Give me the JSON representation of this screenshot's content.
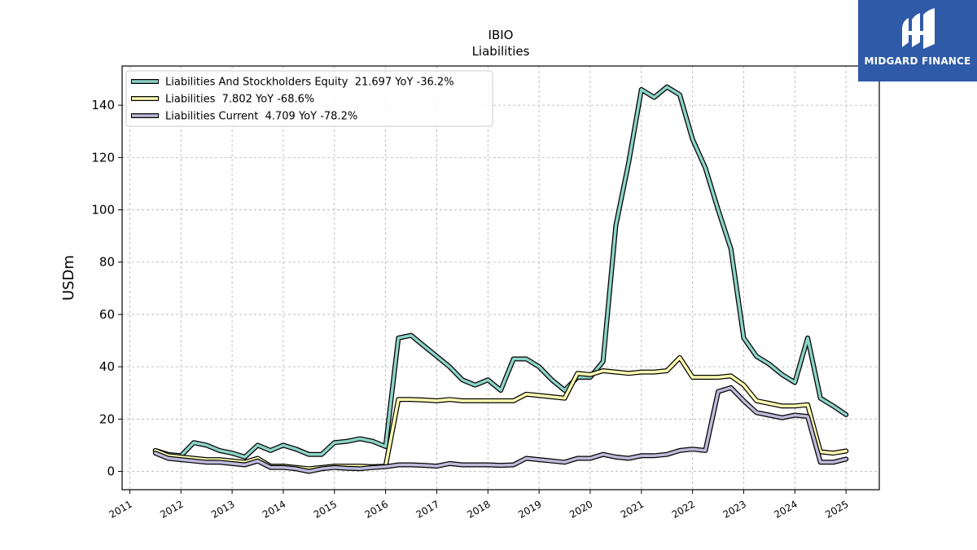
{
  "header": {
    "ticker": "IBIO",
    "subtitle": "Liabilities"
  },
  "logo": {
    "text": "MIDGARD FINANCE",
    "background": "#2f5aa8"
  },
  "chart_data": {
    "type": "line",
    "title": "IBIO",
    "subtitle": "Liabilities",
    "xlabel": "",
    "ylabel": "USDm",
    "xlim": [
      2010.85,
      2025.65
    ],
    "ylim": [
      -7,
      155
    ],
    "xticks": [
      2011,
      2012,
      2013,
      2014,
      2015,
      2016,
      2017,
      2018,
      2019,
      2020,
      2021,
      2022,
      2023,
      2024,
      2025
    ],
    "yticks": [
      0,
      20,
      40,
      60,
      80,
      100,
      120,
      140
    ],
    "grid": true,
    "legend_position": "top-left",
    "series": [
      {
        "name": "Liabilities And Stockholders Equity  21.697 YoY -36.2%",
        "color": "#8dd3c7",
        "points": [
          [
            2011.5,
            8.0
          ],
          [
            2011.75,
            6.5
          ],
          [
            2012.0,
            6.0
          ],
          [
            2012.25,
            11.0
          ],
          [
            2012.5,
            10.0
          ],
          [
            2012.75,
            8.0
          ],
          [
            2013.0,
            7.0
          ],
          [
            2013.25,
            5.5
          ],
          [
            2013.5,
            10.0
          ],
          [
            2013.75,
            8.0
          ],
          [
            2014.0,
            10.0
          ],
          [
            2014.25,
            8.5
          ],
          [
            2014.5,
            6.5
          ],
          [
            2014.75,
            6.5
          ],
          [
            2015.0,
            11.0
          ],
          [
            2015.25,
            11.5
          ],
          [
            2015.5,
            12.5
          ],
          [
            2015.75,
            11.5
          ],
          [
            2016.0,
            9.5
          ],
          [
            2016.25,
            51.0
          ],
          [
            2016.5,
            52.0
          ],
          [
            2016.75,
            48.0
          ],
          [
            2017.0,
            44.0
          ],
          [
            2017.25,
            40.0
          ],
          [
            2017.5,
            35.0
          ],
          [
            2017.75,
            33.0
          ],
          [
            2018.0,
            35.0
          ],
          [
            2018.25,
            31.0
          ],
          [
            2018.5,
            43.0
          ],
          [
            2018.75,
            43.0
          ],
          [
            2019.0,
            40.0
          ],
          [
            2019.25,
            35.0
          ],
          [
            2019.5,
            31.0
          ],
          [
            2019.75,
            36.0
          ],
          [
            2020.0,
            36.0
          ],
          [
            2020.25,
            42.0
          ],
          [
            2020.5,
            94.0
          ],
          [
            2020.75,
            118.0
          ],
          [
            2021.0,
            146.0
          ],
          [
            2021.25,
            143.0
          ],
          [
            2021.5,
            147.0
          ],
          [
            2021.75,
            144.0
          ],
          [
            2022.0,
            127.0
          ],
          [
            2022.25,
            116.0
          ],
          [
            2022.5,
            100.0
          ],
          [
            2022.75,
            85.0
          ],
          [
            2023.0,
            51.0
          ],
          [
            2023.25,
            44.0
          ],
          [
            2023.5,
            41.0
          ],
          [
            2023.75,
            37.0
          ],
          [
            2024.0,
            34.0
          ],
          [
            2024.25,
            51.0
          ],
          [
            2024.5,
            28.0
          ],
          [
            2024.75,
            25.0
          ],
          [
            2025.0,
            21.7
          ]
        ]
      },
      {
        "name": "Liabilities  7.802 YoY -68.6%",
        "color": "#ffffb3",
        "points": [
          [
            2011.5,
            8.0
          ],
          [
            2011.75,
            6.0
          ],
          [
            2012.0,
            5.5
          ],
          [
            2012.25,
            5.0
          ],
          [
            2012.5,
            4.5
          ],
          [
            2012.75,
            4.5
          ],
          [
            2013.0,
            4.0
          ],
          [
            2013.25,
            3.5
          ],
          [
            2013.5,
            5.0
          ],
          [
            2013.75,
            2.0
          ],
          [
            2014.0,
            2.0
          ],
          [
            2014.25,
            1.5
          ],
          [
            2014.5,
            1.0
          ],
          [
            2014.75,
            1.5
          ],
          [
            2015.0,
            2.0
          ],
          [
            2015.25,
            2.0
          ],
          [
            2015.5,
            2.0
          ],
          [
            2015.75,
            1.8
          ],
          [
            2016.0,
            2.0
          ],
          [
            2016.25,
            27.5
          ],
          [
            2016.5,
            27.5
          ],
          [
            2016.75,
            27.3
          ],
          [
            2017.0,
            27.0
          ],
          [
            2017.25,
            27.5
          ],
          [
            2017.5,
            27.0
          ],
          [
            2017.75,
            27.0
          ],
          [
            2018.0,
            27.0
          ],
          [
            2018.25,
            27.0
          ],
          [
            2018.5,
            27.0
          ],
          [
            2018.75,
            29.5
          ],
          [
            2019.0,
            29.0
          ],
          [
            2019.25,
            28.5
          ],
          [
            2019.5,
            28.0
          ],
          [
            2019.75,
            37.5
          ],
          [
            2020.0,
            37.0
          ],
          [
            2020.25,
            38.5
          ],
          [
            2020.5,
            38.0
          ],
          [
            2020.75,
            37.5
          ],
          [
            2021.0,
            38.0
          ],
          [
            2021.25,
            38.0
          ],
          [
            2021.5,
            38.5
          ],
          [
            2021.75,
            43.5
          ],
          [
            2022.0,
            36.0
          ],
          [
            2022.25,
            36.0
          ],
          [
            2022.5,
            36.0
          ],
          [
            2022.75,
            36.5
          ],
          [
            2023.0,
            33.0
          ],
          [
            2023.25,
            27.0
          ],
          [
            2023.5,
            26.0
          ],
          [
            2023.75,
            25.0
          ],
          [
            2024.0,
            25.0
          ],
          [
            2024.25,
            25.5
          ],
          [
            2024.5,
            7.5
          ],
          [
            2024.75,
            7.0
          ],
          [
            2025.0,
            7.8
          ]
        ]
      },
      {
        "name": "Liabilities Current  4.709 YoY -78.2%",
        "color": "#bebada",
        "points": [
          [
            2011.5,
            7.0
          ],
          [
            2011.75,
            5.0
          ],
          [
            2012.0,
            4.5
          ],
          [
            2012.25,
            4.0
          ],
          [
            2012.5,
            3.5
          ],
          [
            2012.75,
            3.5
          ],
          [
            2013.0,
            3.0
          ],
          [
            2013.25,
            2.5
          ],
          [
            2013.5,
            4.0
          ],
          [
            2013.75,
            1.5
          ],
          [
            2014.0,
            1.5
          ],
          [
            2014.25,
            1.0
          ],
          [
            2014.5,
            0.0
          ],
          [
            2014.75,
            1.0
          ],
          [
            2015.0,
            1.5
          ],
          [
            2015.25,
            1.2
          ],
          [
            2015.5,
            1.0
          ],
          [
            2015.75,
            1.5
          ],
          [
            2016.0,
            1.8
          ],
          [
            2016.25,
            2.5
          ],
          [
            2016.5,
            2.5
          ],
          [
            2016.75,
            2.3
          ],
          [
            2017.0,
            2.0
          ],
          [
            2017.25,
            3.0
          ],
          [
            2017.5,
            2.5
          ],
          [
            2017.75,
            2.5
          ],
          [
            2018.0,
            2.5
          ],
          [
            2018.25,
            2.3
          ],
          [
            2018.5,
            2.5
          ],
          [
            2018.75,
            5.0
          ],
          [
            2019.0,
            4.5
          ],
          [
            2019.25,
            4.0
          ],
          [
            2019.5,
            3.5
          ],
          [
            2019.75,
            5.0
          ],
          [
            2020.0,
            5.0
          ],
          [
            2020.25,
            6.5
          ],
          [
            2020.5,
            5.5
          ],
          [
            2020.75,
            5.0
          ],
          [
            2021.0,
            6.0
          ],
          [
            2021.25,
            6.0
          ],
          [
            2021.5,
            6.5
          ],
          [
            2021.75,
            8.0
          ],
          [
            2022.0,
            8.5
          ],
          [
            2022.25,
            8.0
          ],
          [
            2022.5,
            30.5
          ],
          [
            2022.75,
            32.0
          ],
          [
            2023.0,
            27.0
          ],
          [
            2023.25,
            22.5
          ],
          [
            2023.5,
            21.5
          ],
          [
            2023.75,
            20.5
          ],
          [
            2024.0,
            21.5
          ],
          [
            2024.25,
            21.0
          ],
          [
            2024.5,
            3.5
          ],
          [
            2024.75,
            3.5
          ],
          [
            2025.0,
            4.7
          ]
        ]
      }
    ]
  }
}
